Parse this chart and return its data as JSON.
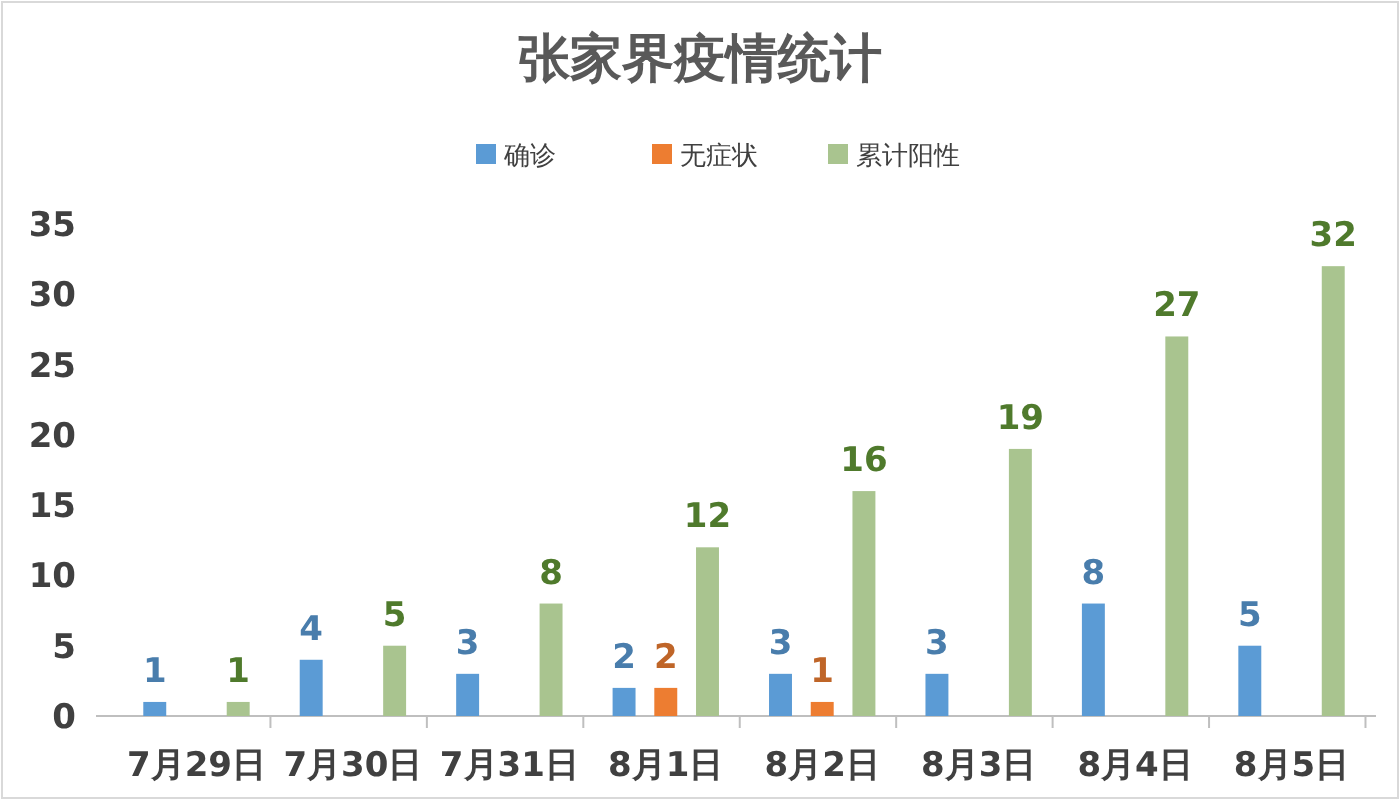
{
  "chart_data": {
    "type": "bar",
    "title": "张家界疫情统计",
    "categories": [
      "7月29日",
      "7月30日",
      "7月31日",
      "8月1日",
      "8月2日",
      "8月3日",
      "8月4日",
      "8月5日"
    ],
    "series": [
      {
        "name": "确诊",
        "color": "#5b9bd5",
        "values": [
          1,
          4,
          3,
          2,
          3,
          3,
          8,
          5
        ],
        "value_labels": [
          "1",
          "4",
          "3",
          "2",
          "3",
          "3",
          "8",
          "5"
        ]
      },
      {
        "name": "无症状",
        "color": "#ed7d31",
        "values": [
          null,
          null,
          null,
          2,
          1,
          null,
          null,
          null
        ],
        "value_labels": [
          null,
          null,
          null,
          "2",
          "1",
          null,
          null,
          null
        ]
      },
      {
        "name": "累计阳性",
        "color": "#a9c48f",
        "values": [
          1,
          5,
          8,
          12,
          16,
          19,
          27,
          32
        ],
        "value_labels": [
          "1",
          "5",
          "8",
          "12",
          "16",
          "19",
          "27",
          "32"
        ]
      }
    ],
    "ylim": [
      0,
      35
    ],
    "yticks": [
      0,
      5,
      10,
      15,
      20,
      25,
      30,
      35
    ],
    "grid": false,
    "legend": "top"
  }
}
